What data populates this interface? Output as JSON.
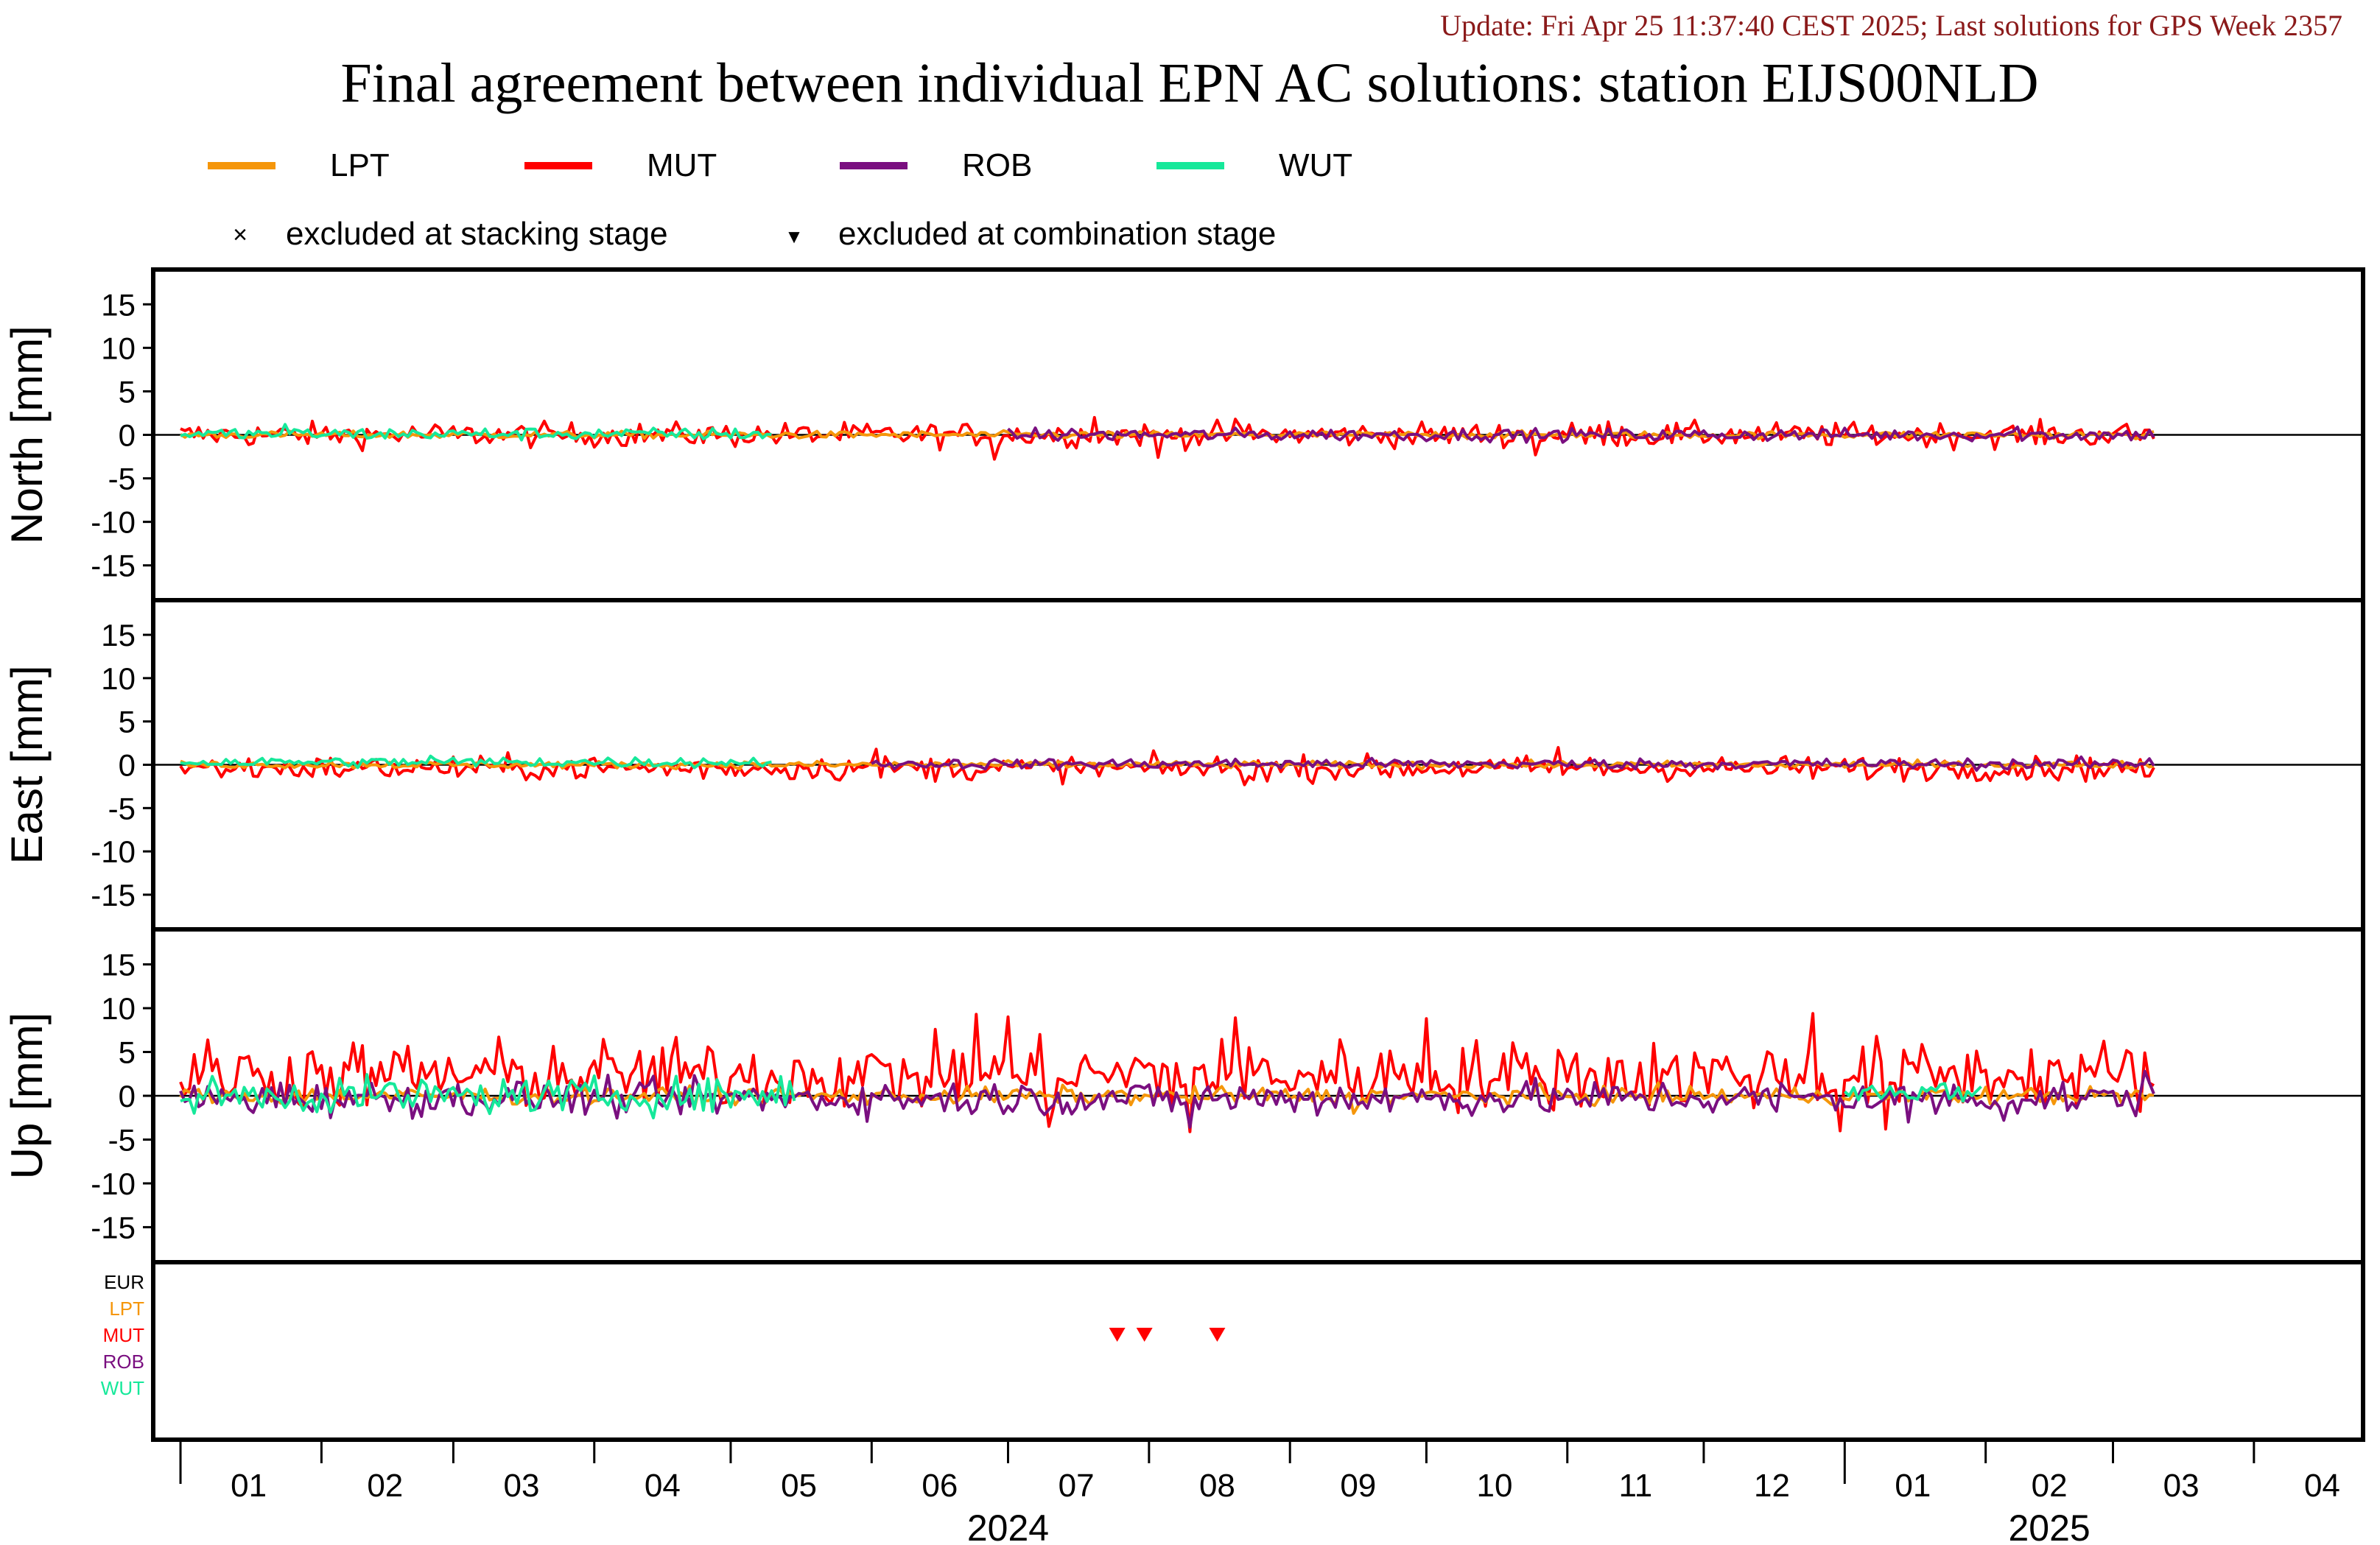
{
  "header": {
    "update_text": "Update: Fri Apr 25 11:37:40 CEST 2025; Last solutions for GPS Week 2357",
    "title": "Final agreement between individual EPN AC solutions: station EIJS00NLD"
  },
  "legend": {
    "series": [
      {
        "name": "LPT",
        "color": "#f5960a"
      },
      {
        "name": "MUT",
        "color": "#ff0000"
      },
      {
        "name": "ROB",
        "color": "#7a0f80"
      },
      {
        "name": "WUT",
        "color": "#16e89a"
      }
    ],
    "markers": [
      {
        "symbol": "×",
        "label": "excluded at stacking stage"
      },
      {
        "symbol": "▼",
        "label": "excluded at combination stage"
      }
    ]
  },
  "chart_data": {
    "type": "line",
    "y_unit": "mm",
    "ylim": [
      -19,
      19
    ],
    "y_ticks": [
      15,
      10,
      5,
      0,
      -5,
      -10,
      -15
    ],
    "x_range": [
      "2023-12-26",
      "2025-04-25"
    ],
    "month_labels": [
      "01",
      "02",
      "03",
      "04",
      "05",
      "06",
      "07",
      "08",
      "09",
      "10",
      "11",
      "12",
      "01",
      "02",
      "03",
      "04"
    ],
    "year_labels": [
      {
        "label": "2024",
        "center": "2024-07-01"
      },
      {
        "label": "2025",
        "center": "2025-02-15"
      }
    ],
    "panels": [
      {
        "ylabel": "North [mm]",
        "series": [
          {
            "name": "MUT",
            "color": "#ff0000",
            "start": "2024-01-01",
            "end": "2025-03-10",
            "mean": 0.0,
            "noise": 0.7,
            "spikes": [
              {
                "date": "2024-06-28",
                "value": -2.8
              },
              {
                "date": "2024-07-20",
                "value": 2.0
              },
              {
                "date": "2024-08-03",
                "value": -2.6
              },
              {
                "date": "2024-08-20",
                "value": 1.8
              },
              {
                "date": "2024-10-25",
                "value": -2.3
              },
              {
                "date": "2024-11-10",
                "value": 1.5
              }
            ]
          },
          {
            "name": "LPT",
            "color": "#f5960a",
            "start": "2024-01-01",
            "end": "2025-03-10",
            "mean": 0.0,
            "noise": 0.2,
            "spikes": []
          },
          {
            "name": "ROB",
            "color": "#7a0f80",
            "start": "2024-07-01",
            "end": "2025-03-10",
            "mean": 0.0,
            "noise": 0.35,
            "spikes": [
              {
                "date": "2025-02-08",
                "value": 0.9
              }
            ]
          },
          {
            "name": "WUT",
            "color": "#16e89a",
            "start": "2024-01-01",
            "end": "2024-05-10",
            "mean": 0.1,
            "noise": 0.35,
            "spikes": [
              {
                "date": "2024-01-24",
                "value": 1.2
              }
            ]
          }
        ]
      },
      {
        "ylabel": "East [mm]",
        "series": [
          {
            "name": "MUT",
            "color": "#ff0000",
            "start": "2024-01-01",
            "end": "2025-03-10",
            "mean": -0.4,
            "noise": 0.7,
            "spikes": [
              {
                "date": "2024-06-02",
                "value": 1.8
              },
              {
                "date": "2024-08-22",
                "value": -2.3
              },
              {
                "date": "2024-10-30",
                "value": 2.0
              },
              {
                "date": "2025-03-09",
                "value": -1.3
              }
            ]
          },
          {
            "name": "LPT",
            "color": "#f5960a",
            "start": "2024-01-01",
            "end": "2025-03-10",
            "mean": 0.0,
            "noise": 0.2,
            "spikes": []
          },
          {
            "name": "ROB",
            "color": "#7a0f80",
            "start": "2024-06-01",
            "end": "2025-03-10",
            "mean": 0.1,
            "noise": 0.3,
            "spikes": [
              {
                "date": "2025-03-09",
                "value": 0.7
              }
            ]
          },
          {
            "name": "WUT",
            "color": "#16e89a",
            "start": "2024-01-01",
            "end": "2024-05-10",
            "mean": 0.3,
            "noise": 0.3,
            "spikes": [
              {
                "date": "2024-02-25",
                "value": 1.0
              }
            ]
          }
        ]
      },
      {
        "ylabel": "Up [mm]",
        "series": [
          {
            "name": "MUT",
            "color": "#ff0000",
            "start": "2024-01-01",
            "end": "2025-03-10",
            "mean": 2.4,
            "noise": 2.0,
            "spikes": [
              {
                "date": "2024-06-24",
                "value": 9.3
              },
              {
                "date": "2024-07-01",
                "value": 9.0
              },
              {
                "date": "2024-08-20",
                "value": 8.9
              },
              {
                "date": "2024-10-01",
                "value": 8.8
              },
              {
                "date": "2024-12-25",
                "value": 9.4
              },
              {
                "date": "2024-12-31",
                "value": -4.0
              },
              {
                "date": "2025-01-10",
                "value": -3.8
              },
              {
                "date": "2024-07-10",
                "value": -3.5
              },
              {
                "date": "2024-08-10",
                "value": -4.1
              }
            ]
          },
          {
            "name": "LPT",
            "color": "#f5960a",
            "start": "2024-01-01",
            "end": "2025-03-10",
            "mean": 0.0,
            "noise": 0.5,
            "spikes": [
              {
                "date": "2024-09-15",
                "value": -2.0
              }
            ]
          },
          {
            "name": "ROB",
            "color": "#7a0f80",
            "start": "2024-01-01",
            "end": "2025-03-10",
            "mean": -0.3,
            "noise": 1.0,
            "spikes": [
              {
                "date": "2024-01-25",
                "value": 1.2
              },
              {
                "date": "2024-08-10",
                "value": -3.6
              },
              {
                "date": "2025-01-15",
                "value": -3.0
              },
              {
                "date": "2025-02-05",
                "value": -2.8
              },
              {
                "date": "2025-03-08",
                "value": 2.8
              }
            ]
          },
          {
            "name": "WUT",
            "color": "#16e89a",
            "start": "2024-01-01",
            "end": "2024-05-15",
            "mean": 0.0,
            "noise": 1.0,
            "spikes": [
              {
                "date": "2024-02-05",
                "value": 2.0
              },
              {
                "date": "2024-05-12",
                "value": 2.2
              }
            ]
          },
          {
            "name": "WUT",
            "color": "#16e89a",
            "start": "2025-01-01",
            "end": "2025-01-31",
            "mean": 0.5,
            "noise": 0.6,
            "spikes": []
          }
        ]
      }
    ],
    "exclusion_panel": {
      "row_labels": [
        {
          "name": "EUR",
          "color": "#000000"
        },
        {
          "name": "LPT",
          "color": "#f5960a"
        },
        {
          "name": "MUT",
          "color": "#ff0000"
        },
        {
          "name": "ROB",
          "color": "#7a0f80"
        },
        {
          "name": "WUT",
          "color": "#16e89a"
        }
      ],
      "combination_exclusions": [
        {
          "ac": "MUT",
          "date": "2024-07-25"
        },
        {
          "ac": "MUT",
          "date": "2024-07-31"
        },
        {
          "ac": "MUT",
          "date": "2024-08-16"
        }
      ]
    }
  }
}
